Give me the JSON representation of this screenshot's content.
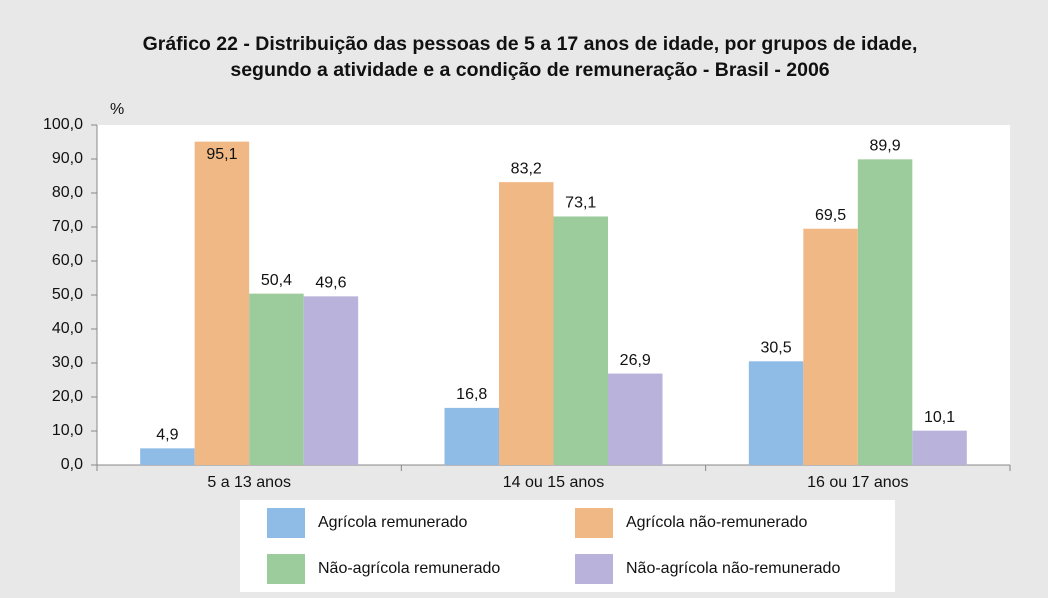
{
  "chart_data": {
    "type": "bar",
    "title": [
      "Gráfico 22 - Distribuição das pessoas de 5 a 17 anos de idade, por grupos de idade,",
      "segundo a atividade e a condição de remuneração - Brasil - 2006"
    ],
    "y_label": "%",
    "categories": [
      "5 a 13 anos",
      "14 ou 15 anos",
      "16 ou 17 anos"
    ],
    "series": [
      {
        "name": "Agrícola remunerado",
        "color": "#8fbce6",
        "values": [
          4.9,
          16.8,
          30.5
        ],
        "value_labels": [
          "4,9",
          "16,8",
          "30,5"
        ]
      },
      {
        "name": "Agrícola não-remunerado",
        "color": "#f0b884",
        "values": [
          95.1,
          83.2,
          69.5
        ],
        "value_labels": [
          "95,1",
          "83,2",
          "69,5"
        ]
      },
      {
        "name": "Não-agrícola remunerado",
        "color": "#9dcc9c",
        "values": [
          50.4,
          73.1,
          89.9
        ],
        "value_labels": [
          "50,4",
          "73,1",
          "89,9"
        ]
      },
      {
        "name": "Não-agrícola não-remunerado",
        "color": "#b9b3db",
        "values": [
          49.6,
          26.9,
          10.1
        ],
        "value_labels": [
          "49,6",
          "26,9",
          "10,1"
        ]
      }
    ],
    "ylim": [
      0,
      100
    ],
    "yticks": [
      {
        "value": 0,
        "label": "0,0"
      },
      {
        "value": 10,
        "label": "10,0"
      },
      {
        "value": 20,
        "label": "20,0"
      },
      {
        "value": 30,
        "label": "30,0"
      },
      {
        "value": 40,
        "label": "40,0"
      },
      {
        "value": 50,
        "label": "50,0"
      },
      {
        "value": 60,
        "label": "60,0"
      },
      {
        "value": 70,
        "label": "70,0"
      },
      {
        "value": 80,
        "label": "80,0"
      },
      {
        "value": 90,
        "label": "90,0"
      },
      {
        "value": 100,
        "label": "100,0"
      }
    ],
    "grid": false
  }
}
